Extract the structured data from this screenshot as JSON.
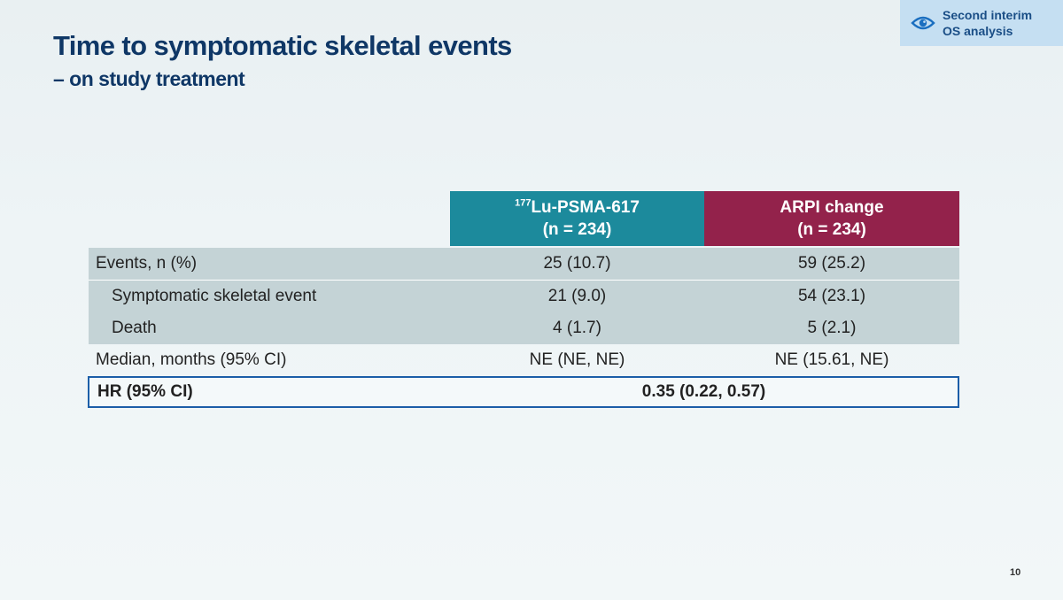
{
  "slide": {
    "title": "Time to symptomatic skeletal events",
    "subtitle": "– on study treatment",
    "page_number": "10"
  },
  "badge": {
    "icon": "eye-icon",
    "line1": "Second interim",
    "line2": "OS analysis"
  },
  "table": {
    "columns": [
      {
        "superscript": "177",
        "name": "Lu-PSMA-617",
        "n": "(n = 234)",
        "color": "#1c8a9c"
      },
      {
        "superscript": "",
        "name": "ARPI change",
        "n": "(n = 234)",
        "color": "#93224b"
      }
    ],
    "rows": [
      {
        "label": "Events, n (%)",
        "values": [
          "25 (10.7)",
          "59 (25.2)"
        ]
      },
      {
        "label": "Symptomatic skeletal event",
        "values": [
          "21 (9.0)",
          "54 (23.1)"
        ]
      },
      {
        "label": "Death",
        "values": [
          "4 (1.7)",
          "5 (2.1)"
        ]
      },
      {
        "label": "Median, months (95% CI)",
        "values": [
          "NE (NE, NE)",
          "NE (15.61, NE)"
        ]
      }
    ],
    "hr": {
      "label": "HR (95% CI)",
      "value": "0.35 (0.22, 0.57)"
    }
  }
}
